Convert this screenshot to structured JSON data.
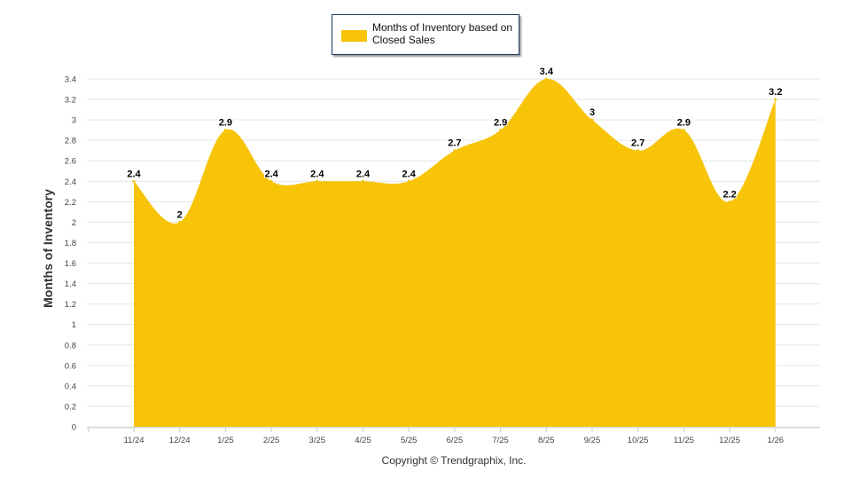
{
  "chart_data": {
    "type": "area",
    "categories": [
      "11/24",
      "12/24",
      "1/25",
      "2/25",
      "3/25",
      "4/25",
      "5/25",
      "6/25",
      "7/25",
      "8/25",
      "9/25",
      "10/25",
      "11/25",
      "12/25",
      "1/26"
    ],
    "series": [
      {
        "name": "Months of Inventory based on Closed Sales",
        "values": [
          2.4,
          2,
          2.9,
          2.4,
          2.4,
          2.4,
          2.4,
          2.7,
          2.9,
          3.4,
          3,
          2.7,
          2.9,
          2.2,
          3.2
        ],
        "color": "#f7c408"
      }
    ],
    "ylabel": "Months of Inventory",
    "xlabel": "",
    "ylim": [
      0,
      3.4
    ],
    "yticks": [
      "0",
      "0.2",
      "0.4",
      "0.6",
      "0.8",
      "1",
      "1.2",
      "1.4",
      "1.6",
      "1.8",
      "2",
      "2.2",
      "2.4",
      "2.6",
      "2.8",
      "3",
      "3.2",
      "3.4"
    ],
    "grid": true,
    "legend": "top"
  },
  "legend_label": "Months of Inventory based on Closed Sales",
  "copyright": "Copyright © Trendgraphix, Inc."
}
